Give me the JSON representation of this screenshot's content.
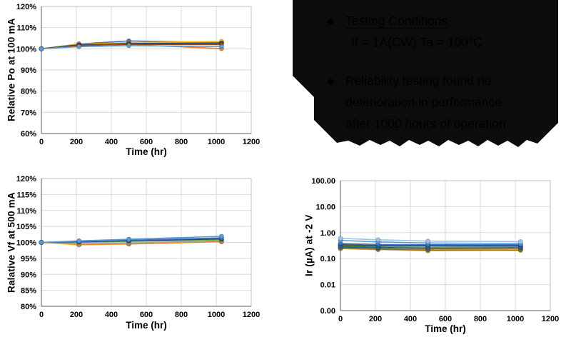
{
  "callout": {
    "background_color": "#0D0B0B",
    "text_color": "#000000",
    "bullets": [
      {
        "marker": "◆",
        "line1": "Testing Conditions",
        "line2": "If = 1A(CW)  Ta = 100°C"
      },
      {
        "marker": "◆",
        "line1": "Reliability testing found no",
        "line2": "deterioration in performance",
        "line3": "after 1000 hours of operation"
      }
    ]
  },
  "chart_data": [
    {
      "type": "line",
      "title": "",
      "xlabel": "Time (hr)",
      "ylabel": "Relative Po at 100 mA",
      "x": [
        0,
        215,
        500,
        1030
      ],
      "xlim": [
        0,
        1200
      ],
      "xticks": [
        [
          0,
          "0"
        ],
        [
          200,
          "200"
        ],
        [
          400,
          "400"
        ],
        [
          600,
          "600"
        ],
        [
          800,
          "800"
        ],
        [
          1000,
          "1000"
        ],
        [
          1200,
          "1200"
        ]
      ],
      "yscale": "linear",
      "ylim": [
        60,
        120
      ],
      "yticks": [
        [
          60,
          "60%"
        ],
        [
          70,
          "70%"
        ],
        [
          80,
          "80%"
        ],
        [
          90,
          "90%"
        ],
        [
          100,
          "100%"
        ],
        [
          110,
          "110%"
        ],
        [
          120,
          "120%"
        ]
      ],
      "grid": true,
      "legend": "none",
      "series": [
        {
          "color": "#4472C4",
          "values": [
            100,
            102.3,
            103.7,
            103.0
          ]
        },
        {
          "color": "#ED7D31",
          "values": [
            100,
            101.7,
            102.0,
            100.1
          ]
        },
        {
          "color": "#A5A5A5",
          "values": [
            100,
            102.0,
            102.6,
            103.2
          ]
        },
        {
          "color": "#FFC000",
          "values": [
            100,
            102.2,
            102.9,
            103.5
          ]
        },
        {
          "color": "#70AD47",
          "values": [
            100,
            101.8,
            102.3,
            102.4
          ]
        },
        {
          "color": "#264478",
          "values": [
            100,
            101.9,
            102.5,
            102.7
          ]
        },
        {
          "color": "#9E480E",
          "values": [
            100,
            101.5,
            102.1,
            102.0
          ]
        },
        {
          "color": "#5B9BD5",
          "values": [
            100,
            101.0,
            101.5,
            101.0
          ]
        }
      ]
    },
    {
      "type": "line",
      "title": "",
      "xlabel": "Time (hr)",
      "ylabel": "Ralative Vf at 500 mA",
      "x": [
        0,
        215,
        500,
        1030
      ],
      "xlim": [
        0,
        1200
      ],
      "xticks": [
        [
          0,
          "0"
        ],
        [
          200,
          "200"
        ],
        [
          400,
          "400"
        ],
        [
          600,
          "600"
        ],
        [
          800,
          "800"
        ],
        [
          1000,
          "1000"
        ],
        [
          1200,
          "1200"
        ]
      ],
      "yscale": "linear",
      "ylim": [
        80,
        120
      ],
      "yticks": [
        [
          80,
          "80%"
        ],
        [
          85,
          "85%"
        ],
        [
          90,
          "90%"
        ],
        [
          95,
          "95%"
        ],
        [
          100,
          "100%"
        ],
        [
          105,
          "105%"
        ],
        [
          110,
          "110%"
        ],
        [
          115,
          "115%"
        ],
        [
          120,
          "120%"
        ]
      ],
      "grid": true,
      "legend": "none",
      "series": [
        {
          "color": "#FFC000",
          "values": [
            100,
            99.2,
            99.5,
            100.2
          ]
        },
        {
          "color": "#ED7D31",
          "values": [
            100,
            99.4,
            99.5,
            100.3
          ]
        },
        {
          "color": "#A5A5A5",
          "values": [
            100,
            99.6,
            99.8,
            100.5
          ]
        },
        {
          "color": "#70AD47",
          "values": [
            100,
            100.0,
            100.3,
            100.8
          ]
        },
        {
          "color": "#264478",
          "values": [
            100,
            100.2,
            100.5,
            101.1
          ]
        },
        {
          "color": "#4472C4",
          "values": [
            100,
            100.3,
            100.7,
            101.4
          ]
        },
        {
          "color": "#5B9BD5",
          "values": [
            100,
            100.5,
            101.0,
            101.9
          ]
        }
      ]
    },
    {
      "type": "line",
      "title": "",
      "xlabel": "Time (hr)",
      "ylabel": "Ir (µA) at -2 V",
      "x": [
        0,
        215,
        500,
        1030
      ],
      "xlim": [
        0,
        1200
      ],
      "xticks": [
        [
          0,
          "0"
        ],
        [
          200,
          "200"
        ],
        [
          400,
          "400"
        ],
        [
          600,
          "600"
        ],
        [
          800,
          "800"
        ],
        [
          1000,
          "1000"
        ],
        [
          1200,
          "1200"
        ]
      ],
      "yscale": "log",
      "ylim": [
        0.001,
        100
      ],
      "yticks": [
        [
          100,
          "100.00"
        ],
        [
          10,
          "10.00"
        ],
        [
          1,
          "1.00"
        ],
        [
          0.1,
          "0.10"
        ],
        [
          0.01,
          "0.01"
        ],
        [
          0.001,
          "0.00"
        ]
      ],
      "grid": true,
      "legend": "none",
      "series": [
        {
          "color": "#A5A5A5",
          "values": [
            0.27,
            0.24,
            0.22,
            0.23
          ]
        },
        {
          "color": "#BFBFBF",
          "values": [
            0.24,
            0.22,
            0.2,
            0.22
          ]
        },
        {
          "color": "#997300",
          "values": [
            0.25,
            0.23,
            0.21,
            0.21
          ]
        },
        {
          "color": "#ED7D31",
          "values": [
            0.3,
            0.27,
            0.24,
            0.25
          ]
        },
        {
          "color": "#FFC000",
          "values": [
            0.37,
            0.33,
            0.3,
            0.28
          ]
        },
        {
          "color": "#43682B",
          "values": [
            0.31,
            0.28,
            0.26,
            0.27
          ]
        },
        {
          "color": "#70AD47",
          "values": [
            0.33,
            0.3,
            0.27,
            0.28
          ]
        },
        {
          "color": "#264478",
          "values": [
            0.34,
            0.32,
            0.31,
            0.31
          ]
        },
        {
          "color": "#4472C4",
          "values": [
            0.38,
            0.35,
            0.34,
            0.34
          ]
        },
        {
          "color": "#255E91",
          "values": [
            0.28,
            0.26,
            0.25,
            0.26
          ]
        },
        {
          "color": "#5B9BD5",
          "values": [
            0.5,
            0.44,
            0.4,
            0.38
          ]
        },
        {
          "color": "#9DC3E6",
          "values": [
            0.6,
            0.53,
            0.47,
            0.45
          ]
        }
      ]
    }
  ],
  "style": {
    "gridline_color": "#D9D9D9",
    "axis_line_color": "#7F7F7F",
    "plot_border_color": "#BFBFBF",
    "tick_label_color": "#000000"
  }
}
